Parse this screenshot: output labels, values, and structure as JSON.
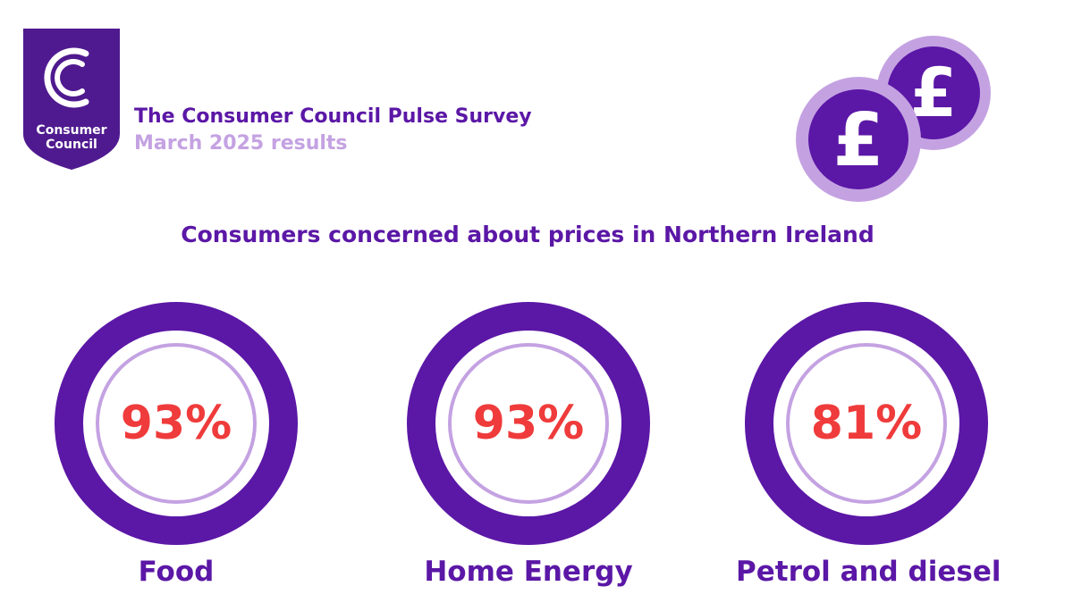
{
  "logo": {
    "line1": "Consumer",
    "line2": "Council"
  },
  "header": {
    "title": "The Consumer Council Pulse Survey",
    "subtitle": "March 2025 results"
  },
  "heading": "Consumers concerned about prices in Northern Ireland",
  "coins_icon": "pound-coins-icon",
  "stats": [
    {
      "value": "93%",
      "label": "Food",
      "fraction": 0.93
    },
    {
      "value": "93%",
      "label": "Home Energy",
      "fraction": 0.93
    },
    {
      "value": "81%",
      "label": "Petrol and diesel",
      "fraction": 0.81
    }
  ],
  "colors": {
    "purple": "#5b17a6",
    "lavender": "#c4a2e2",
    "red": "#ef3b3b"
  }
}
